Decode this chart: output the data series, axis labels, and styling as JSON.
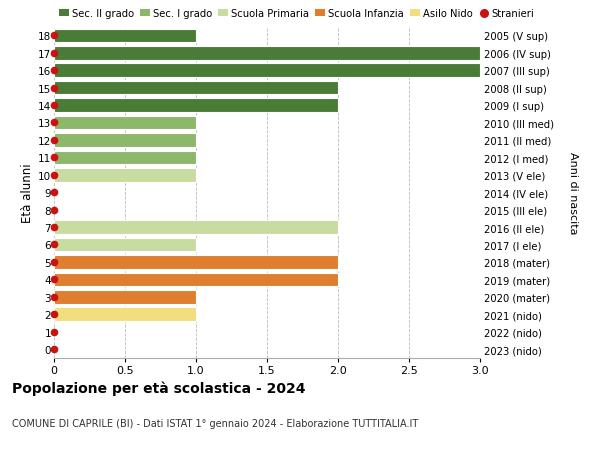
{
  "ages": [
    0,
    1,
    2,
    3,
    4,
    5,
    6,
    7,
    8,
    9,
    10,
    11,
    12,
    13,
    14,
    15,
    16,
    17,
    18
  ],
  "right_labels": [
    "2023 (nido)",
    "2022 (nido)",
    "2021 (nido)",
    "2020 (mater)",
    "2019 (mater)",
    "2018 (mater)",
    "2017 (I ele)",
    "2016 (II ele)",
    "2015 (III ele)",
    "2014 (IV ele)",
    "2013 (V ele)",
    "2012 (I med)",
    "2011 (II med)",
    "2010 (III med)",
    "2009 (I sup)",
    "2008 (II sup)",
    "2007 (III sup)",
    "2006 (IV sup)",
    "2005 (V sup)"
  ],
  "bar_values": [
    0,
    0,
    1,
    1,
    2,
    2,
    1,
    2,
    0,
    0,
    1,
    1,
    1,
    1,
    2,
    2,
    3,
    3,
    1
  ],
  "bar_colors": [
    "#f2de7e",
    "#f2de7e",
    "#f2de7e",
    "#de7e2e",
    "#de7e2e",
    "#de7e2e",
    "#c8dba0",
    "#c8dba0",
    "#c8dba0",
    "#c8dba0",
    "#c8dba0",
    "#8db86a",
    "#8db86a",
    "#8db86a",
    "#4a7c38",
    "#4a7c38",
    "#4a7c38",
    "#4a7c38",
    "#4a7c38"
  ],
  "stranieri_ages": [
    0,
    1,
    2,
    3,
    4,
    5,
    6,
    7,
    8,
    9,
    10,
    11,
    12,
    13,
    14,
    15,
    16,
    17,
    18
  ],
  "legend_labels": [
    "Sec. II grado",
    "Sec. I grado",
    "Scuola Primaria",
    "Scuola Infanzia",
    "Asilo Nido",
    "Stranieri"
  ],
  "legend_colors": [
    "#4a7c38",
    "#8db86a",
    "#c8dba0",
    "#de7e2e",
    "#f2de7e",
    "#cc1111"
  ],
  "title": "Popolazione per età scolastica - 2024",
  "subtitle": "COMUNE DI CAPRILE (BI) - Dati ISTAT 1° gennaio 2024 - Elaborazione TUTTITALIA.IT",
  "ylabel_left": "Età alunni",
  "ylabel_right": "Anni di nascita",
  "xlim": [
    0,
    3.0
  ],
  "xticks": [
    0,
    0.5,
    1.0,
    1.5,
    2.0,
    2.5,
    3.0
  ],
  "xtick_labels": [
    "0",
    "0.5",
    "1.0",
    "1.5",
    "2.0",
    "2.5",
    "3.0"
  ],
  "bg_color": "#ffffff",
  "bar_height": 0.78,
  "grid_color": "#bbbbbb",
  "stranieri_color": "#cc1111",
  "stranieri_size": 4.5
}
